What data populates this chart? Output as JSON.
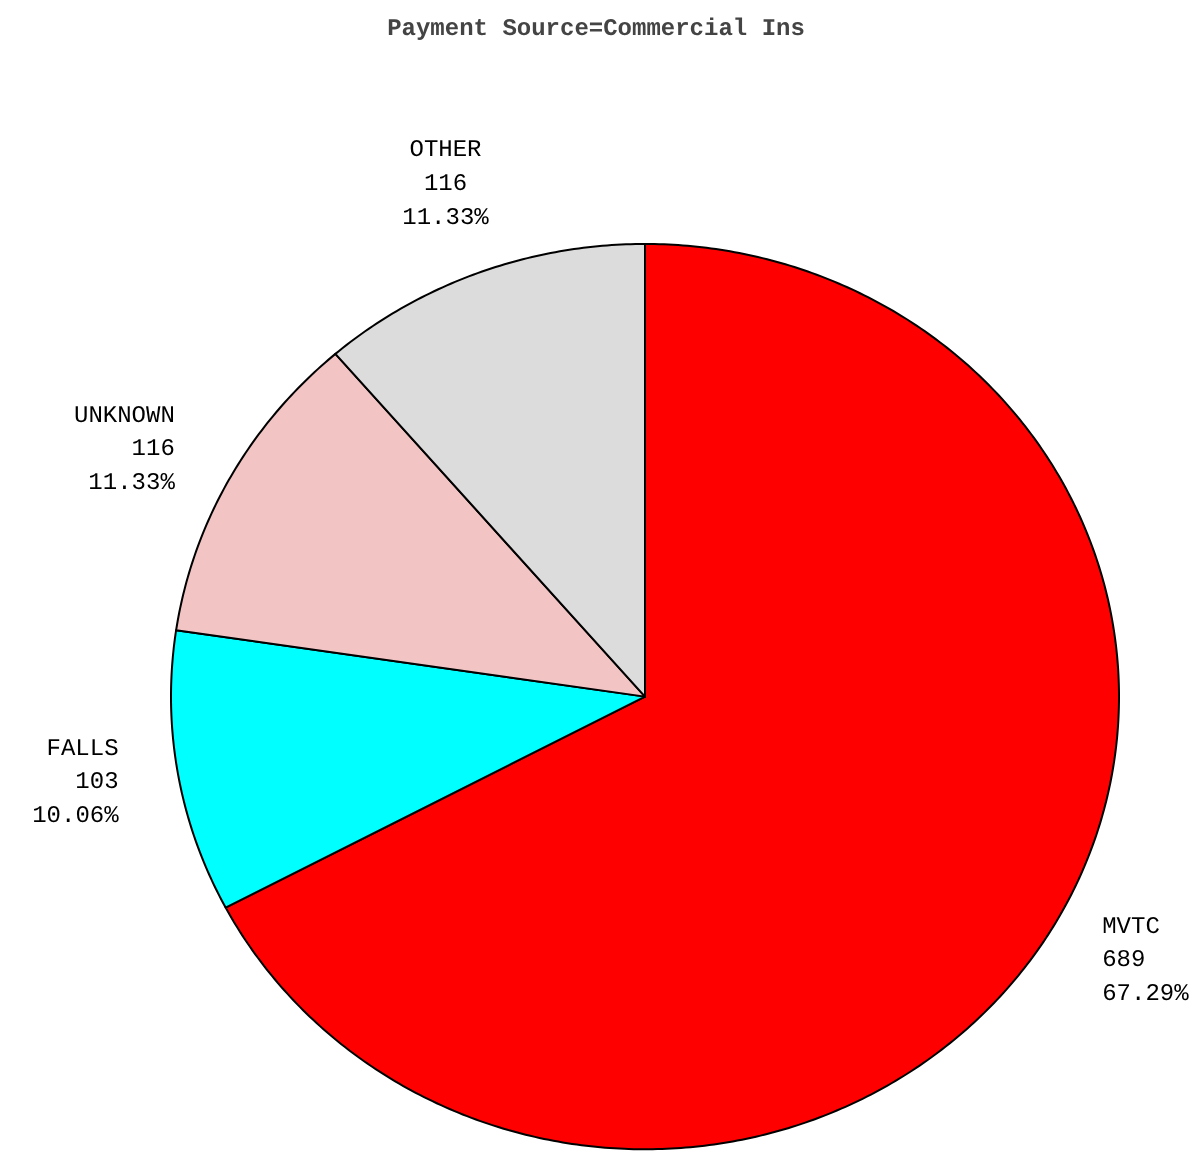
{
  "chart_data": {
    "type": "pie",
    "title": "Payment Source=Commercial Ins",
    "categories": [
      "MVTC",
      "FALLS",
      "UNKNOWN",
      "OTHER"
    ],
    "values": [
      689,
      103,
      116,
      116
    ],
    "colors": [
      "#ff0000",
      "#00ffff",
      "#f2c4c4",
      "#dcdcdc"
    ],
    "value_labels": [
      "689\n67.29%",
      "103\n10.06%",
      "116\n11.33%",
      "116\n11.33%"
    ],
    "legend": false
  }
}
